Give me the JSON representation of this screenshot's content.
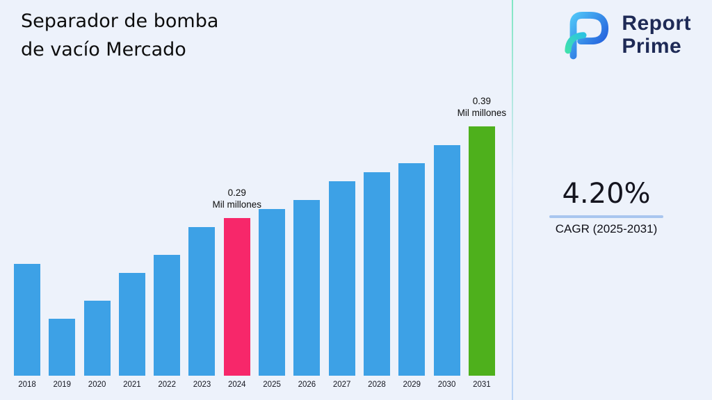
{
  "page": {
    "background": "#edf2fb",
    "divider_gradient": [
      "#7fe7c3",
      "#dbe8f8",
      "#b9d4f6"
    ]
  },
  "header": {
    "title_line1": "Separador de bomba",
    "title_line2": "de vacío Mercado"
  },
  "brand": {
    "name_line1": "Report",
    "name_line2": "Prime",
    "text_color": "#1e2a56",
    "logo_colors": {
      "blue_light": "#4fc3f7",
      "blue_dark": "#1d4ed8",
      "teal": "#3fe0ae",
      "cyan": "#2bc4e0"
    }
  },
  "kpi": {
    "value": "4.20%",
    "label": "CAGR (2025-2031)",
    "underline_color": "#a9c6ef"
  },
  "chart_data": {
    "type": "bar",
    "title": "Separador de bomba de vacío Mercado",
    "categories": [
      "2018",
      "2019",
      "2020",
      "2021",
      "2022",
      "2023",
      "2024",
      "2025",
      "2026",
      "2027",
      "2028",
      "2029",
      "2030",
      "2031"
    ],
    "values": [
      0.24,
      0.18,
      0.2,
      0.23,
      0.25,
      0.28,
      0.29,
      0.3,
      0.31,
      0.33,
      0.34,
      0.35,
      0.37,
      0.39
    ],
    "unit": "Mil millones",
    "xlabel": "",
    "ylabel": "",
    "grid": false,
    "legend": false,
    "bar_color": "#3da1e6",
    "highlights": [
      {
        "category": "2024",
        "color": "#f7276a",
        "label_line1": "0.29",
        "label_line2": "Mil millones"
      },
      {
        "category": "2031",
        "color": "#4eb01c",
        "label_line1": "0.39",
        "label_line2": "Mil millones"
      }
    ]
  }
}
